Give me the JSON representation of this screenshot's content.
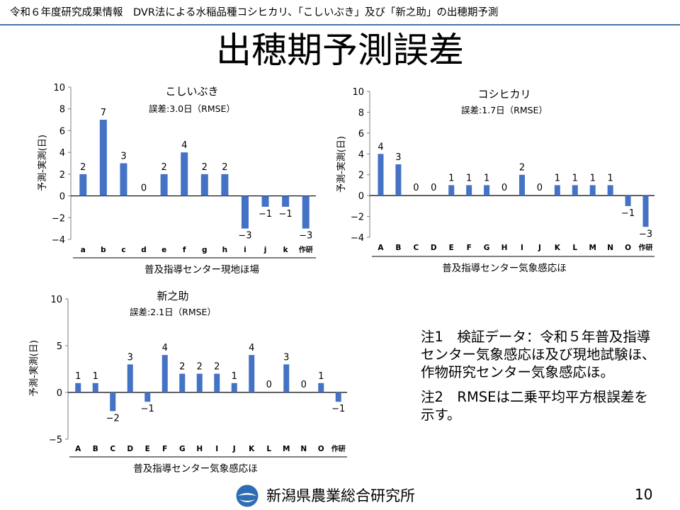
{
  "header": {
    "title": "令和６年度研究成果情報　DVR法による水稲品種コシヒカリ、「こしいぶき」及び「新之助」の出穂期予測"
  },
  "main": {
    "title": "出穂期予測誤差"
  },
  "colors": {
    "bar": "#4472c4",
    "rule": "#4b74a6",
    "logo": "#2e6db4"
  },
  "chart_data": [
    {
      "type": "bar",
      "title": "こしいぶき",
      "subtitle": "誤差:3.0日（RMSE）",
      "ylabel": "予測-実測(日)",
      "ylim": [
        -4,
        10
      ],
      "yticks": [
        10,
        8,
        6,
        4,
        2,
        0,
        -2,
        -4
      ],
      "ytick_labels": [
        "10",
        "8",
        "6",
        "4",
        "2",
        "0",
        "−2",
        "−4"
      ],
      "categories": [
        "a",
        "b",
        "c",
        "d",
        "e",
        "f",
        "g",
        "h",
        "i",
        "j",
        "k",
        "作研"
      ],
      "values": [
        2,
        7,
        3,
        0,
        2,
        4,
        2,
        2,
        -3,
        -1,
        -1,
        -3
      ],
      "data_labels": [
        "2",
        "7",
        "3",
        "0",
        "2",
        "4",
        "2",
        "2",
        "−3",
        "−1",
        "−1",
        "−3"
      ],
      "group_label": "普及指導センター現地ほ場"
    },
    {
      "type": "bar",
      "title": "コシヒカリ",
      "subtitle": "誤差:1.7日（RMSE）",
      "ylabel": "予測-実測(日)",
      "ylim": [
        -4,
        10
      ],
      "yticks": [
        10,
        8,
        6,
        4,
        2,
        0,
        -2,
        -4
      ],
      "ytick_labels": [
        "10",
        "8",
        "6",
        "4",
        "2",
        "0",
        "−2",
        "−4"
      ],
      "categories": [
        "A",
        "B",
        "C",
        "D",
        "E",
        "F",
        "G",
        "H",
        "I",
        "J",
        "K",
        "L",
        "M",
        "N",
        "O",
        "作研"
      ],
      "values": [
        4,
        3,
        0,
        0,
        1,
        1,
        1,
        0,
        2,
        0,
        1,
        1,
        1,
        1,
        -1,
        -3
      ],
      "data_labels": [
        "4",
        "3",
        "0",
        "0",
        "1",
        "1",
        "1",
        "0",
        "2",
        "0",
        "1",
        "1",
        "1",
        "1",
        "−1",
        "−3"
      ],
      "group_label": "普及指導センター気象感応ほ"
    },
    {
      "type": "bar",
      "title": "新之助",
      "subtitle": "誤差:2.1日（RMSE）",
      "ylabel": "予測-実測(日)",
      "ylim": [
        -5,
        10
      ],
      "yticks": [
        10,
        5,
        0,
        -5
      ],
      "ytick_labels": [
        "10",
        "5",
        "0",
        "−5"
      ],
      "categories": [
        "A",
        "B",
        "C",
        "D",
        "E",
        "F",
        "G",
        "H",
        "I",
        "J",
        "K",
        "L",
        "M",
        "N",
        "O",
        "作研"
      ],
      "values": [
        1,
        1,
        -2,
        3,
        -1,
        4,
        2,
        2,
        2,
        1,
        4,
        0,
        3,
        0,
        1,
        -1
      ],
      "data_labels": [
        "1",
        "1",
        "−2",
        "3",
        "−1",
        "4",
        "2",
        "2",
        "2",
        "1",
        "4",
        "0",
        "3",
        "0",
        "1",
        "−1"
      ],
      "group_label": "普及指導センター気象感応ほ"
    }
  ],
  "notes": [
    "注1　検証データ：令和５年普及指導センター気象感応ほ及び現地試験ほ、作物研究センター気象感応ほ。",
    "注2　RMSEは二乗平均平方根誤差を示す。"
  ],
  "footer": {
    "logo_icon": "prefecture-emblem-icon",
    "org_name": "新潟県農業総合研究所",
    "page_number": "10"
  }
}
